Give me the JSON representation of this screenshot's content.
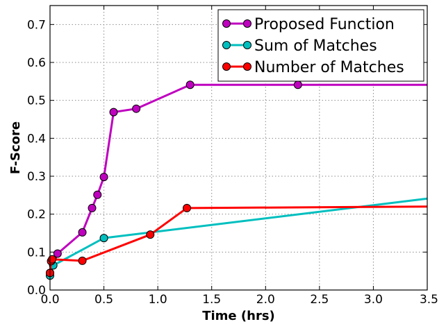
{
  "chart_data": {
    "type": "line",
    "title": "",
    "xlabel": "Time (hrs)",
    "ylabel": "F-Score",
    "xlim": [
      0,
      3.5
    ],
    "ylim": [
      0,
      0.75
    ],
    "xticks": [
      0,
      0.5,
      1,
      1.5,
      2,
      2.5,
      3,
      3.5
    ],
    "xtick_labels": [
      "0.0",
      "0.5",
      "1.0",
      "1.5",
      "2.0",
      "2.5",
      "3.0",
      "3.5"
    ],
    "yticks": [
      0,
      0.1,
      0.2,
      0.3,
      0.4,
      0.5,
      0.6,
      0.7
    ],
    "ytick_labels": [
      "0.0",
      "0.1",
      "0.2",
      "0.3",
      "0.4",
      "0.5",
      "0.6",
      "0.7"
    ],
    "grid": true,
    "legend_position": "top-right",
    "series": [
      {
        "name": "Proposed Function",
        "color": "#bf00bf",
        "x": [
          0,
          0.07,
          0.3,
          0.39,
          0.44,
          0.5,
          0.59,
          0.8,
          1.3,
          2.3,
          3.5
        ],
        "y": [
          0.045,
          0.096,
          0.152,
          0.216,
          0.251,
          0.298,
          0.469,
          0.478,
          0.541,
          0.541,
          0.541
        ],
        "markers": [
          true,
          true,
          true,
          true,
          true,
          true,
          true,
          true,
          true,
          true,
          false
        ]
      },
      {
        "name": "Sum of Matches",
        "color": "#00bfbf",
        "x": [
          0,
          0.03,
          0.5,
          3.5
        ],
        "y": [
          0.038,
          0.065,
          0.137,
          0.241
        ],
        "markers": [
          true,
          true,
          true,
          false
        ]
      },
      {
        "name": "Number of Matches",
        "color": "#ff0000",
        "x": [
          0,
          0.01,
          0.02,
          0.3,
          0.93,
          1.27,
          3.5
        ],
        "y": [
          0.045,
          0.076,
          0.081,
          0.077,
          0.146,
          0.216,
          0.22
        ],
        "markers": [
          true,
          true,
          true,
          true,
          true,
          true,
          false
        ]
      }
    ]
  }
}
